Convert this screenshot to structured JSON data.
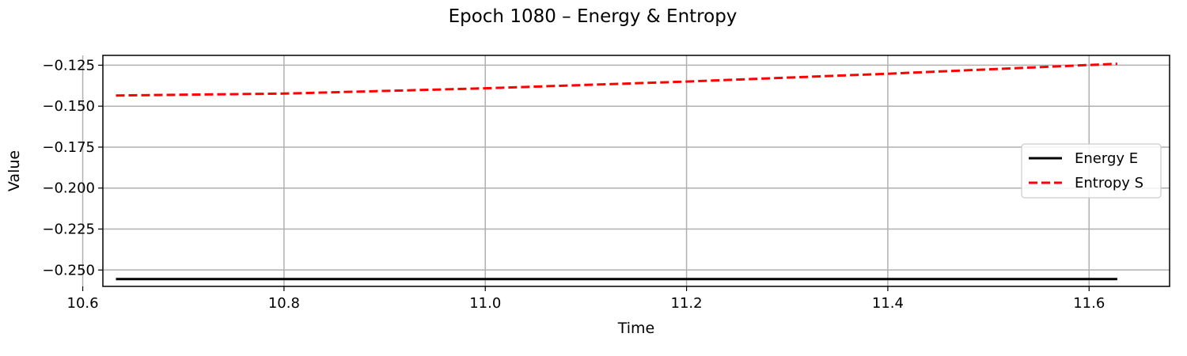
{
  "chart_data": {
    "type": "line",
    "title": "Epoch 1080 – Energy & Entropy",
    "xlabel": "Time",
    "ylabel": "Value",
    "xlim": [
      10.62,
      11.68
    ],
    "ylim": [
      -0.26,
      -0.119
    ],
    "xticks": [
      10.6,
      10.8,
      11.0,
      11.2,
      11.4,
      11.6
    ],
    "xtick_labels": [
      "10.6",
      "10.8",
      "11.0",
      "11.2",
      "11.4",
      "11.6"
    ],
    "yticks": [
      -0.125,
      -0.15,
      -0.175,
      -0.2,
      -0.225,
      -0.25
    ],
    "ytick_labels": [
      "−0.125",
      "−0.150",
      "−0.175",
      "−0.200",
      "−0.225",
      "−0.250"
    ],
    "grid": true,
    "legend_position": "center-right",
    "series": [
      {
        "name": "Energy E",
        "color": "#000000",
        "style": "solid",
        "x": [
          10.633,
          11.628
        ],
        "y": [
          -0.2555,
          -0.2555
        ]
      },
      {
        "name": "Entropy S",
        "color": "#ff0000",
        "style": "dashed",
        "x": [
          10.633,
          10.8,
          11.0,
          11.2,
          11.4,
          11.628
        ],
        "y": [
          -0.1435,
          -0.1423,
          -0.1391,
          -0.135,
          -0.1302,
          -0.1241
        ]
      }
    ]
  }
}
